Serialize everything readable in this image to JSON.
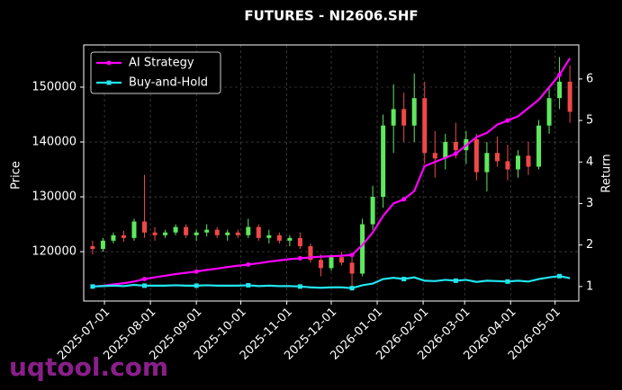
{
  "chart_data": {
    "type": "candlestick",
    "title": "FUTURES - NI2606.SHF",
    "ylabel": "Price",
    "y2label": "Return",
    "x": [
      "2025-06-23",
      "2025-06-30",
      "2025-07-07",
      "2025-07-14",
      "2025-07-21",
      "2025-07-28",
      "2025-08-04",
      "2025-08-11",
      "2025-08-18",
      "2025-08-25",
      "2025-09-01",
      "2025-09-08",
      "2025-09-15",
      "2025-09-22",
      "2025-09-29",
      "2025-10-06",
      "2025-10-13",
      "2025-10-20",
      "2025-10-27",
      "2025-11-03",
      "2025-11-10",
      "2025-11-17",
      "2025-11-24",
      "2025-12-01",
      "2025-12-08",
      "2025-12-15",
      "2025-12-22",
      "2025-12-29",
      "2026-01-05",
      "2026-01-12",
      "2026-01-19",
      "2026-01-26",
      "2026-02-02",
      "2026-02-09",
      "2026-02-16",
      "2026-02-23",
      "2026-03-02",
      "2026-03-09",
      "2026-03-16",
      "2026-03-23",
      "2026-03-30",
      "2026-04-06",
      "2026-04-13",
      "2026-04-20",
      "2026-04-27",
      "2026-05-04",
      "2026-05-11"
    ],
    "open": [
      121000,
      120500,
      122000,
      123000,
      122500,
      125500,
      123500,
      123000,
      123500,
      124500,
      123000,
      123500,
      124000,
      123000,
      123500,
      123000,
      124500,
      122500,
      123000,
      122000,
      122500,
      121000,
      118500,
      117000,
      119000,
      118000,
      116000,
      125000,
      130000,
      143000,
      146000,
      143000,
      148000,
      138000,
      137000,
      140000,
      138500,
      140500,
      134500,
      138000,
      136500,
      135000,
      137500,
      135500,
      143000,
      148000,
      151000
    ],
    "high": [
      122000,
      122500,
      123500,
      123800,
      126000,
      134000,
      124500,
      124000,
      125000,
      125000,
      124000,
      125000,
      124500,
      124000,
      124000,
      126000,
      125000,
      124000,
      123500,
      123000,
      123500,
      121500,
      119500,
      119500,
      120000,
      119000,
      126000,
      132000,
      145000,
      150500,
      149000,
      152500,
      151000,
      142000,
      141500,
      143500,
      142000,
      141500,
      140000,
      141000,
      139500,
      138500,
      140000,
      144000,
      150000,
      155500,
      154000
    ],
    "low": [
      119500,
      120000,
      121500,
      121800,
      122000,
      122500,
      122000,
      122500,
      123000,
      122500,
      122000,
      122800,
      122500,
      122000,
      122500,
      122500,
      122000,
      121500,
      121500,
      121000,
      120500,
      118000,
      115500,
      116500,
      117500,
      113500,
      115500,
      124000,
      128000,
      138000,
      140000,
      140000,
      136000,
      133500,
      135000,
      137000,
      136000,
      133000,
      131000,
      135500,
      133000,
      133500,
      134000,
      135000,
      141500,
      146000,
      143500
    ],
    "close": [
      120500,
      122000,
      123000,
      122500,
      125500,
      123500,
      123000,
      123500,
      124500,
      123000,
      123500,
      124000,
      123000,
      123500,
      123000,
      124500,
      122500,
      123000,
      122000,
      122500,
      121000,
      118500,
      117000,
      119000,
      118000,
      116000,
      125000,
      130000,
      143000,
      146000,
      143000,
      148000,
      138000,
      137000,
      140000,
      138500,
      140500,
      134500,
      138000,
      136500,
      135000,
      137500,
      135500,
      143000,
      148000,
      151000,
      145500
    ],
    "up_color": "#5ee85e",
    "down_color": "#f04848",
    "series": [
      {
        "name": "AI Strategy",
        "color": "#ff00ff",
        "axis": "y2",
        "marker": "circle",
        "values": [
          1.0,
          1.02,
          1.05,
          1.08,
          1.12,
          1.18,
          1.22,
          1.26,
          1.3,
          1.33,
          1.36,
          1.4,
          1.43,
          1.47,
          1.5,
          1.53,
          1.56,
          1.6,
          1.63,
          1.66,
          1.68,
          1.7,
          1.72,
          1.73,
          1.74,
          1.76,
          2.0,
          2.3,
          2.7,
          3.0,
          3.1,
          3.3,
          3.9,
          4.0,
          4.1,
          4.2,
          4.4,
          4.6,
          4.7,
          4.9,
          5.0,
          5.1,
          5.3,
          5.5,
          5.8,
          6.1,
          6.5
        ]
      },
      {
        "name": "Buy-and-Hold",
        "color": "#22e5f0",
        "axis": "y2",
        "marker": "square",
        "values": [
          1.0,
          1.01,
          1.02,
          1.01,
          1.04,
          1.02,
          1.02,
          1.02,
          1.03,
          1.02,
          1.02,
          1.03,
          1.02,
          1.02,
          1.02,
          1.03,
          1.01,
          1.02,
          1.01,
          1.01,
          1.0,
          0.98,
          0.97,
          0.98,
          0.98,
          0.96,
          1.03,
          1.07,
          1.18,
          1.21,
          1.18,
          1.22,
          1.14,
          1.13,
          1.16,
          1.14,
          1.16,
          1.11,
          1.14,
          1.13,
          1.12,
          1.14,
          1.12,
          1.18,
          1.22,
          1.25,
          1.2
        ]
      }
    ],
    "xlim": [
      "2025-06-17",
      "2026-05-17"
    ],
    "xticks": [
      "2025-07-01",
      "2025-08-01",
      "2025-09-01",
      "2025-10-01",
      "2025-11-01",
      "2025-12-01",
      "2026-01-01",
      "2026-02-01",
      "2026-03-01",
      "2026-04-01",
      "2026-05-01"
    ],
    "ylim": [
      111000,
      157700
    ],
    "yticks": [
      120000,
      130000,
      140000,
      150000
    ],
    "y2lim": [
      0.65,
      6.82
    ],
    "y2ticks": [
      1,
      2,
      3,
      4,
      5,
      6
    ],
    "grid": true,
    "legend": "upper left"
  },
  "watermark": "uqtool.com"
}
